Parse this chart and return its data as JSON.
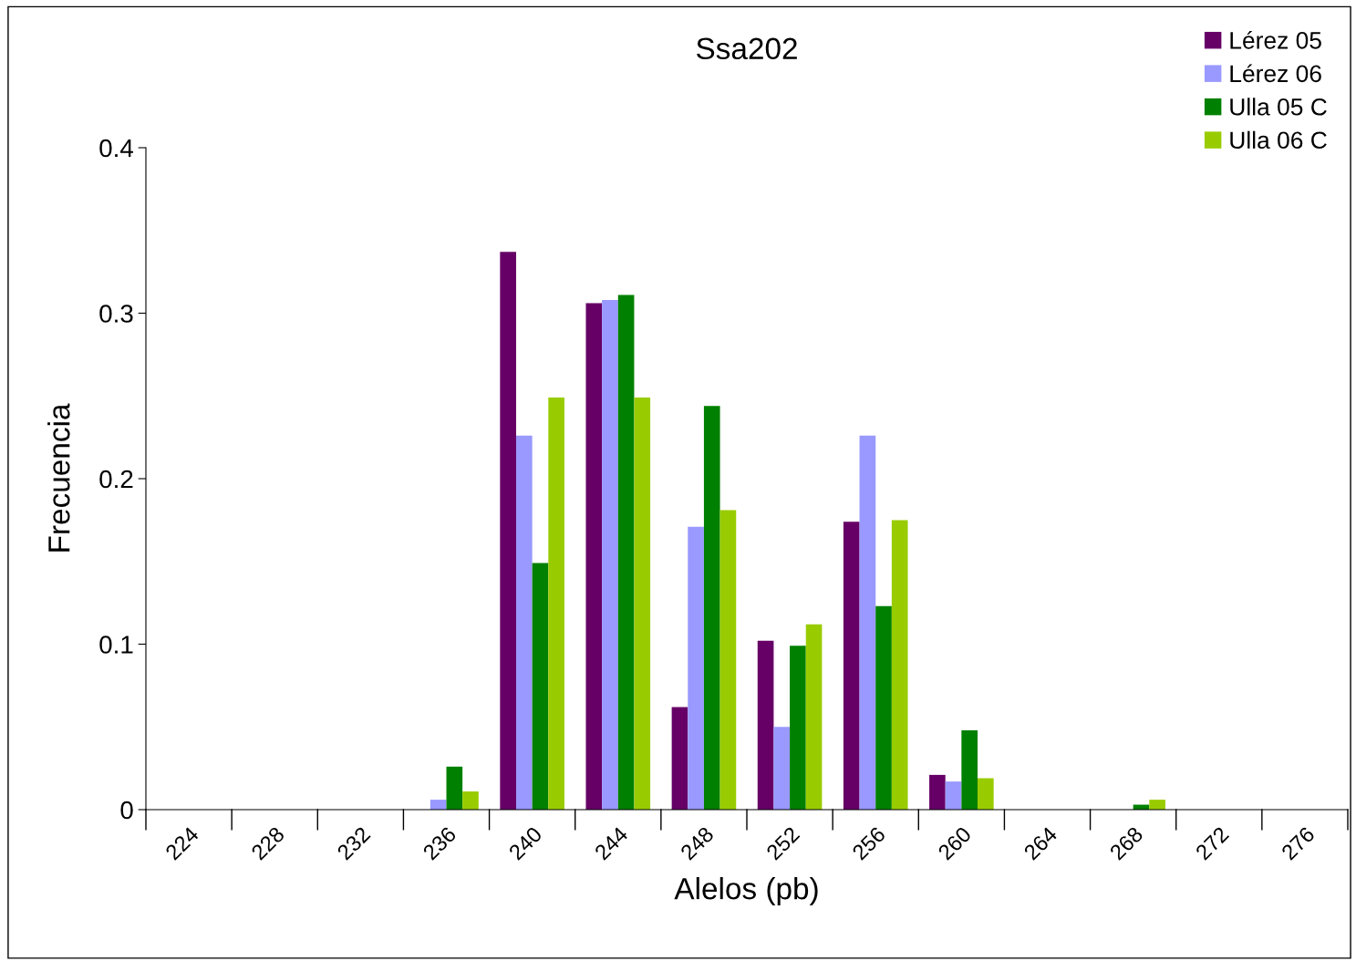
{
  "chart_data": {
    "type": "bar",
    "title": "Ssa202",
    "xlabel": "Alelos (pb)",
    "ylabel": "Frecuencia",
    "categories": [
      "224",
      "228",
      "232",
      "236",
      "240",
      "244",
      "248",
      "252",
      "256",
      "260",
      "264",
      "268",
      "272",
      "276"
    ],
    "series": [
      {
        "name": "Lérez 05",
        "color": "#660066",
        "values": [
          0,
          0,
          0,
          0,
          0.337,
          0.306,
          0.062,
          0.102,
          0.174,
          0.021,
          0,
          0,
          0,
          0
        ]
      },
      {
        "name": "Lérez 06",
        "color": "#9999ff",
        "values": [
          0,
          0,
          0,
          0.006,
          0.226,
          0.308,
          0.171,
          0.05,
          0.226,
          0.017,
          0,
          0,
          0,
          0
        ]
      },
      {
        "name": "Ulla 05 C",
        "color": "#008000",
        "values": [
          0,
          0,
          0,
          0.026,
          0.149,
          0.311,
          0.244,
          0.099,
          0.123,
          0.048,
          0,
          0.003,
          0,
          0
        ]
      },
      {
        "name": "Ulla 06 C",
        "color": "#99cc00",
        "values": [
          0,
          0,
          0,
          0.011,
          0.249,
          0.249,
          0.181,
          0.112,
          0.175,
          0.019,
          0,
          0.006,
          0,
          0
        ]
      }
    ],
    "ylim": [
      0,
      0.4
    ],
    "yticks": [
      0,
      0.1,
      0.2,
      0.3,
      0.4
    ],
    "grid": false,
    "legend": "top right"
  }
}
